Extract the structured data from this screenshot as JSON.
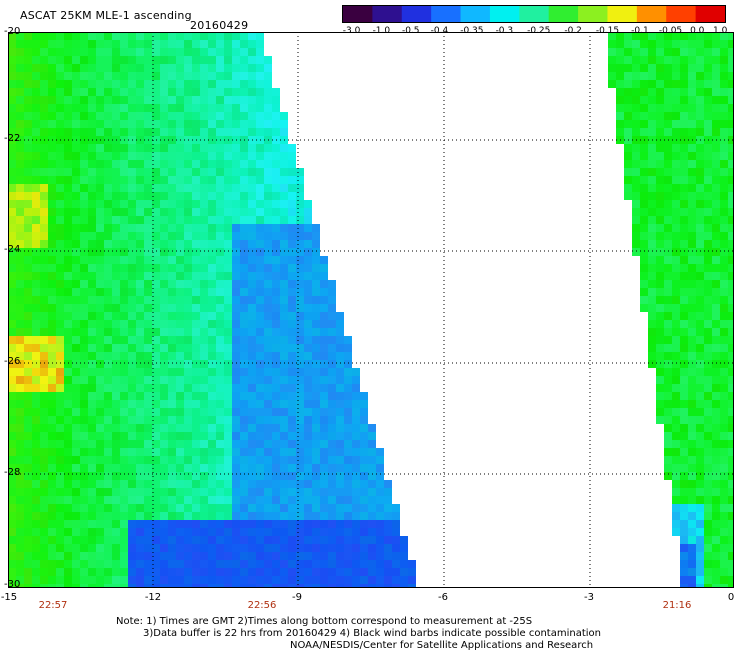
{
  "header": {
    "title": "ASCAT 25KM MLE-1 ascending",
    "date": "20160429"
  },
  "colorbar": {
    "labels": [
      "-3.0",
      "-1.0",
      "-0.5",
      "-0.4",
      "-0.35",
      "-0.3",
      "-0.25",
      "-0.2",
      "-0.15",
      "-0.1",
      "-0.05",
      "0.0",
      "1.0"
    ],
    "colors": [
      "#3a0040",
      "#2e1090",
      "#2030e0",
      "#1870ff",
      "#10b8ff",
      "#00f0f0",
      "#20f0a0",
      "#30ee30",
      "#8cf020",
      "#f0f010",
      "#ff9000",
      "#ff4000",
      "#e00000"
    ]
  },
  "map": {
    "lat_labels": [
      "-20",
      "-22",
      "-24",
      "-26",
      "-28",
      "-30"
    ],
    "lon_labels": [
      "-15",
      "-12",
      "-9",
      "-6",
      "-3",
      "0"
    ],
    "lat_range": [
      -30,
      -20
    ],
    "lon_range": [
      -15,
      0
    ],
    "swath_times": [
      "22:57",
      "22:56",
      "21:16"
    ]
  },
  "notes": {
    "line1": "Note: 1) Times are GMT 2)Times along bottom correspond to measurement at -25S",
    "line2": "3)Data buffer is 22 hrs from 20160429 4) Black wind barbs indicate possible contamination",
    "line3": "NOAA/NESDIS/Center for Satellite Applications and Research"
  }
}
